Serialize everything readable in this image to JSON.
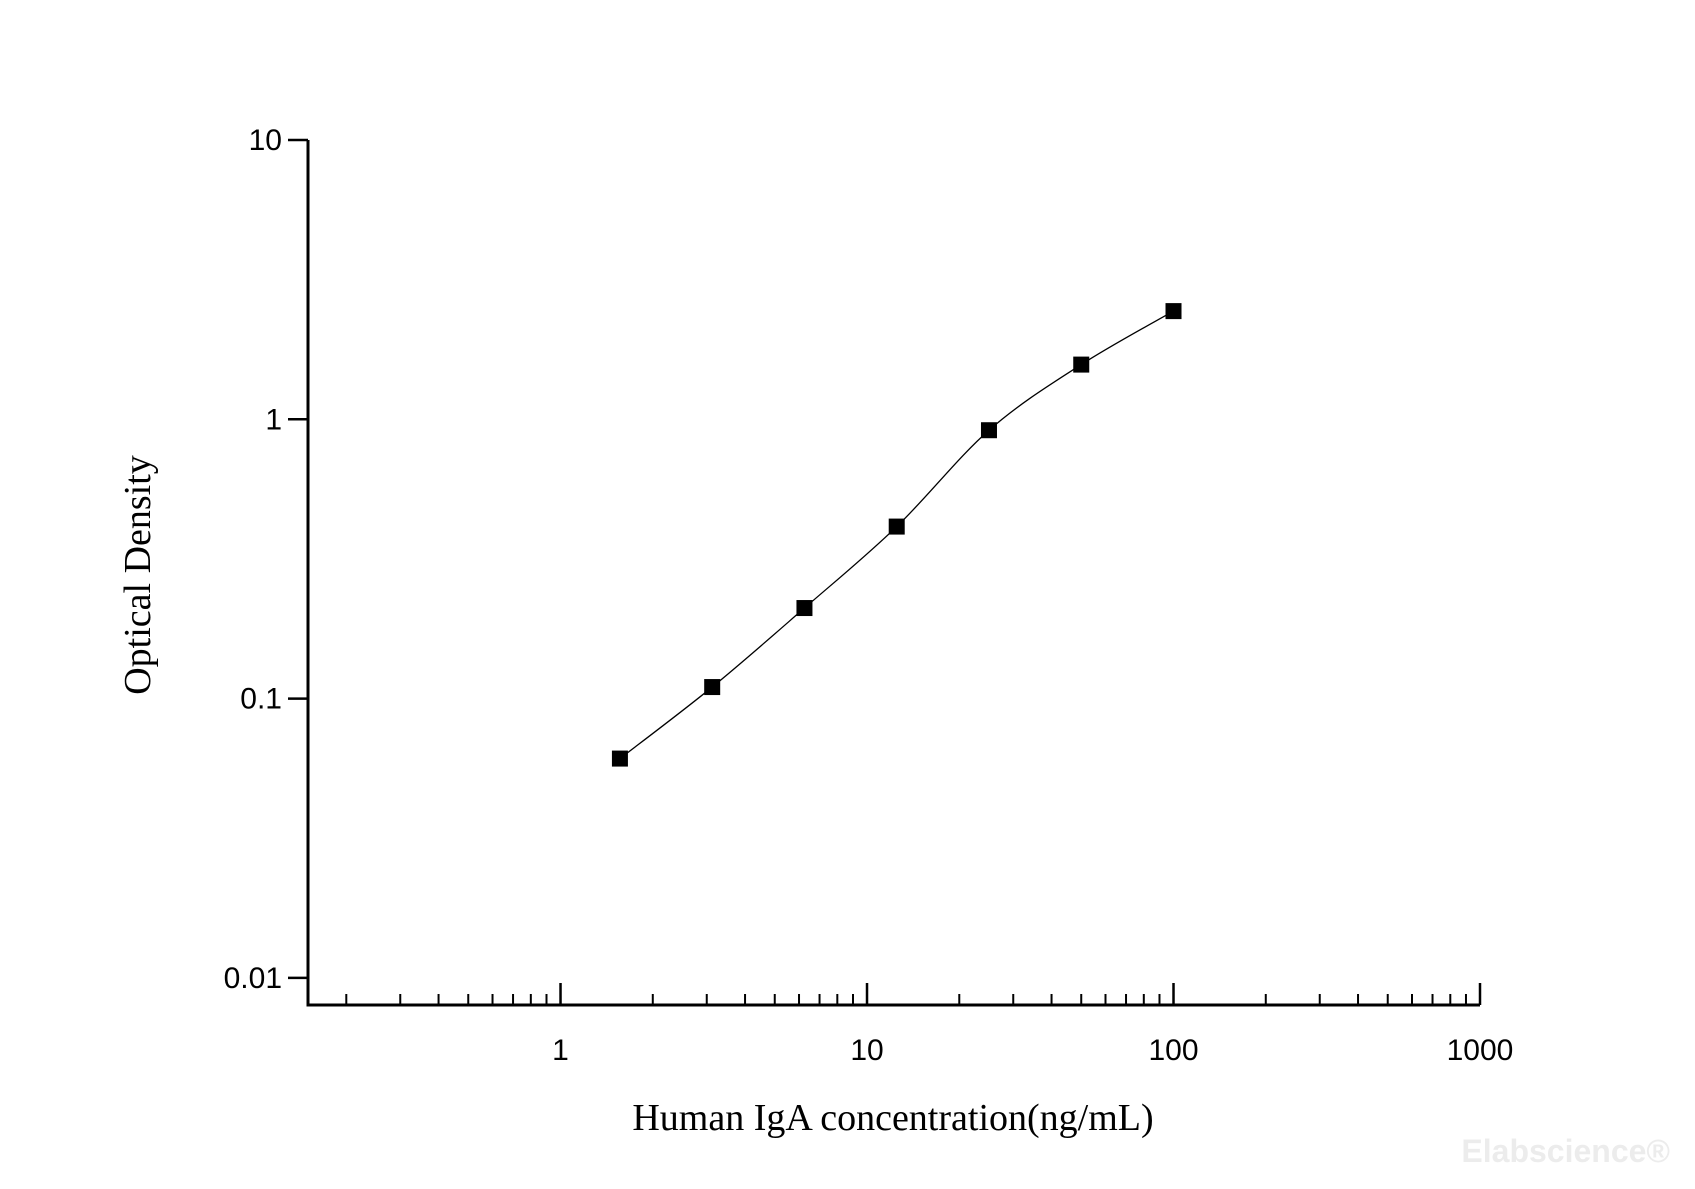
{
  "chart_data": {
    "type": "scatter",
    "x_label": "Human IgA concentration(ng/mL)",
    "y_label": "Optical Density",
    "watermark": "Elabscience®",
    "xlog": true,
    "ylog": true,
    "xlim": [
      0.15,
      1000
    ],
    "ylim": [
      0.008,
      10
    ],
    "xticks": [
      1,
      10,
      100,
      1000
    ],
    "xminorticks": [
      0.2,
      0.3,
      0.4,
      0.5,
      0.6,
      0.7,
      0.8,
      0.9,
      2,
      3,
      4,
      5,
      6,
      7,
      8,
      9,
      20,
      30,
      40,
      50,
      60,
      70,
      80,
      90,
      200,
      300,
      400,
      500,
      600,
      700,
      800,
      900
    ],
    "yticks": [
      0.01,
      0.1,
      1,
      10
    ],
    "series": [
      {
        "color": "#000000",
        "line": true,
        "marker": "square",
        "x": [
          1.5625,
          3.125,
          6.25,
          12.5,
          25,
          50,
          100
        ],
        "values": [
          0.061,
          0.11,
          0.211,
          0.413,
          0.914,
          1.57,
          2.44
        ]
      }
    ]
  }
}
